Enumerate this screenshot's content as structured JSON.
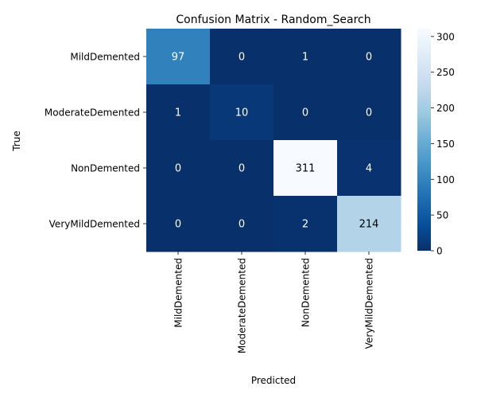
{
  "chart_data": {
    "type": "heatmap",
    "title": "Confusion Matrix - Random_Search",
    "xlabel": "Predicted",
    "ylabel": "True",
    "x_categories": [
      "MildDemented",
      "ModerateDemented",
      "NonDemented",
      "VeryMildDemented"
    ],
    "y_categories": [
      "MildDemented",
      "ModerateDemented",
      "NonDemented",
      "VeryMildDemented"
    ],
    "matrix": [
      [
        97,
        0,
        1,
        0
      ],
      [
        1,
        10,
        0,
        0
      ],
      [
        0,
        0,
        311,
        4
      ],
      [
        0,
        0,
        2,
        214
      ]
    ],
    "colormap": "Blues_r",
    "vmin": 0,
    "vmax": 311,
    "colorbar_ticks": [
      0,
      50,
      100,
      150,
      200,
      250,
      300
    ],
    "colors": {
      "low": "#08306b",
      "high": "#f7fbff"
    }
  }
}
